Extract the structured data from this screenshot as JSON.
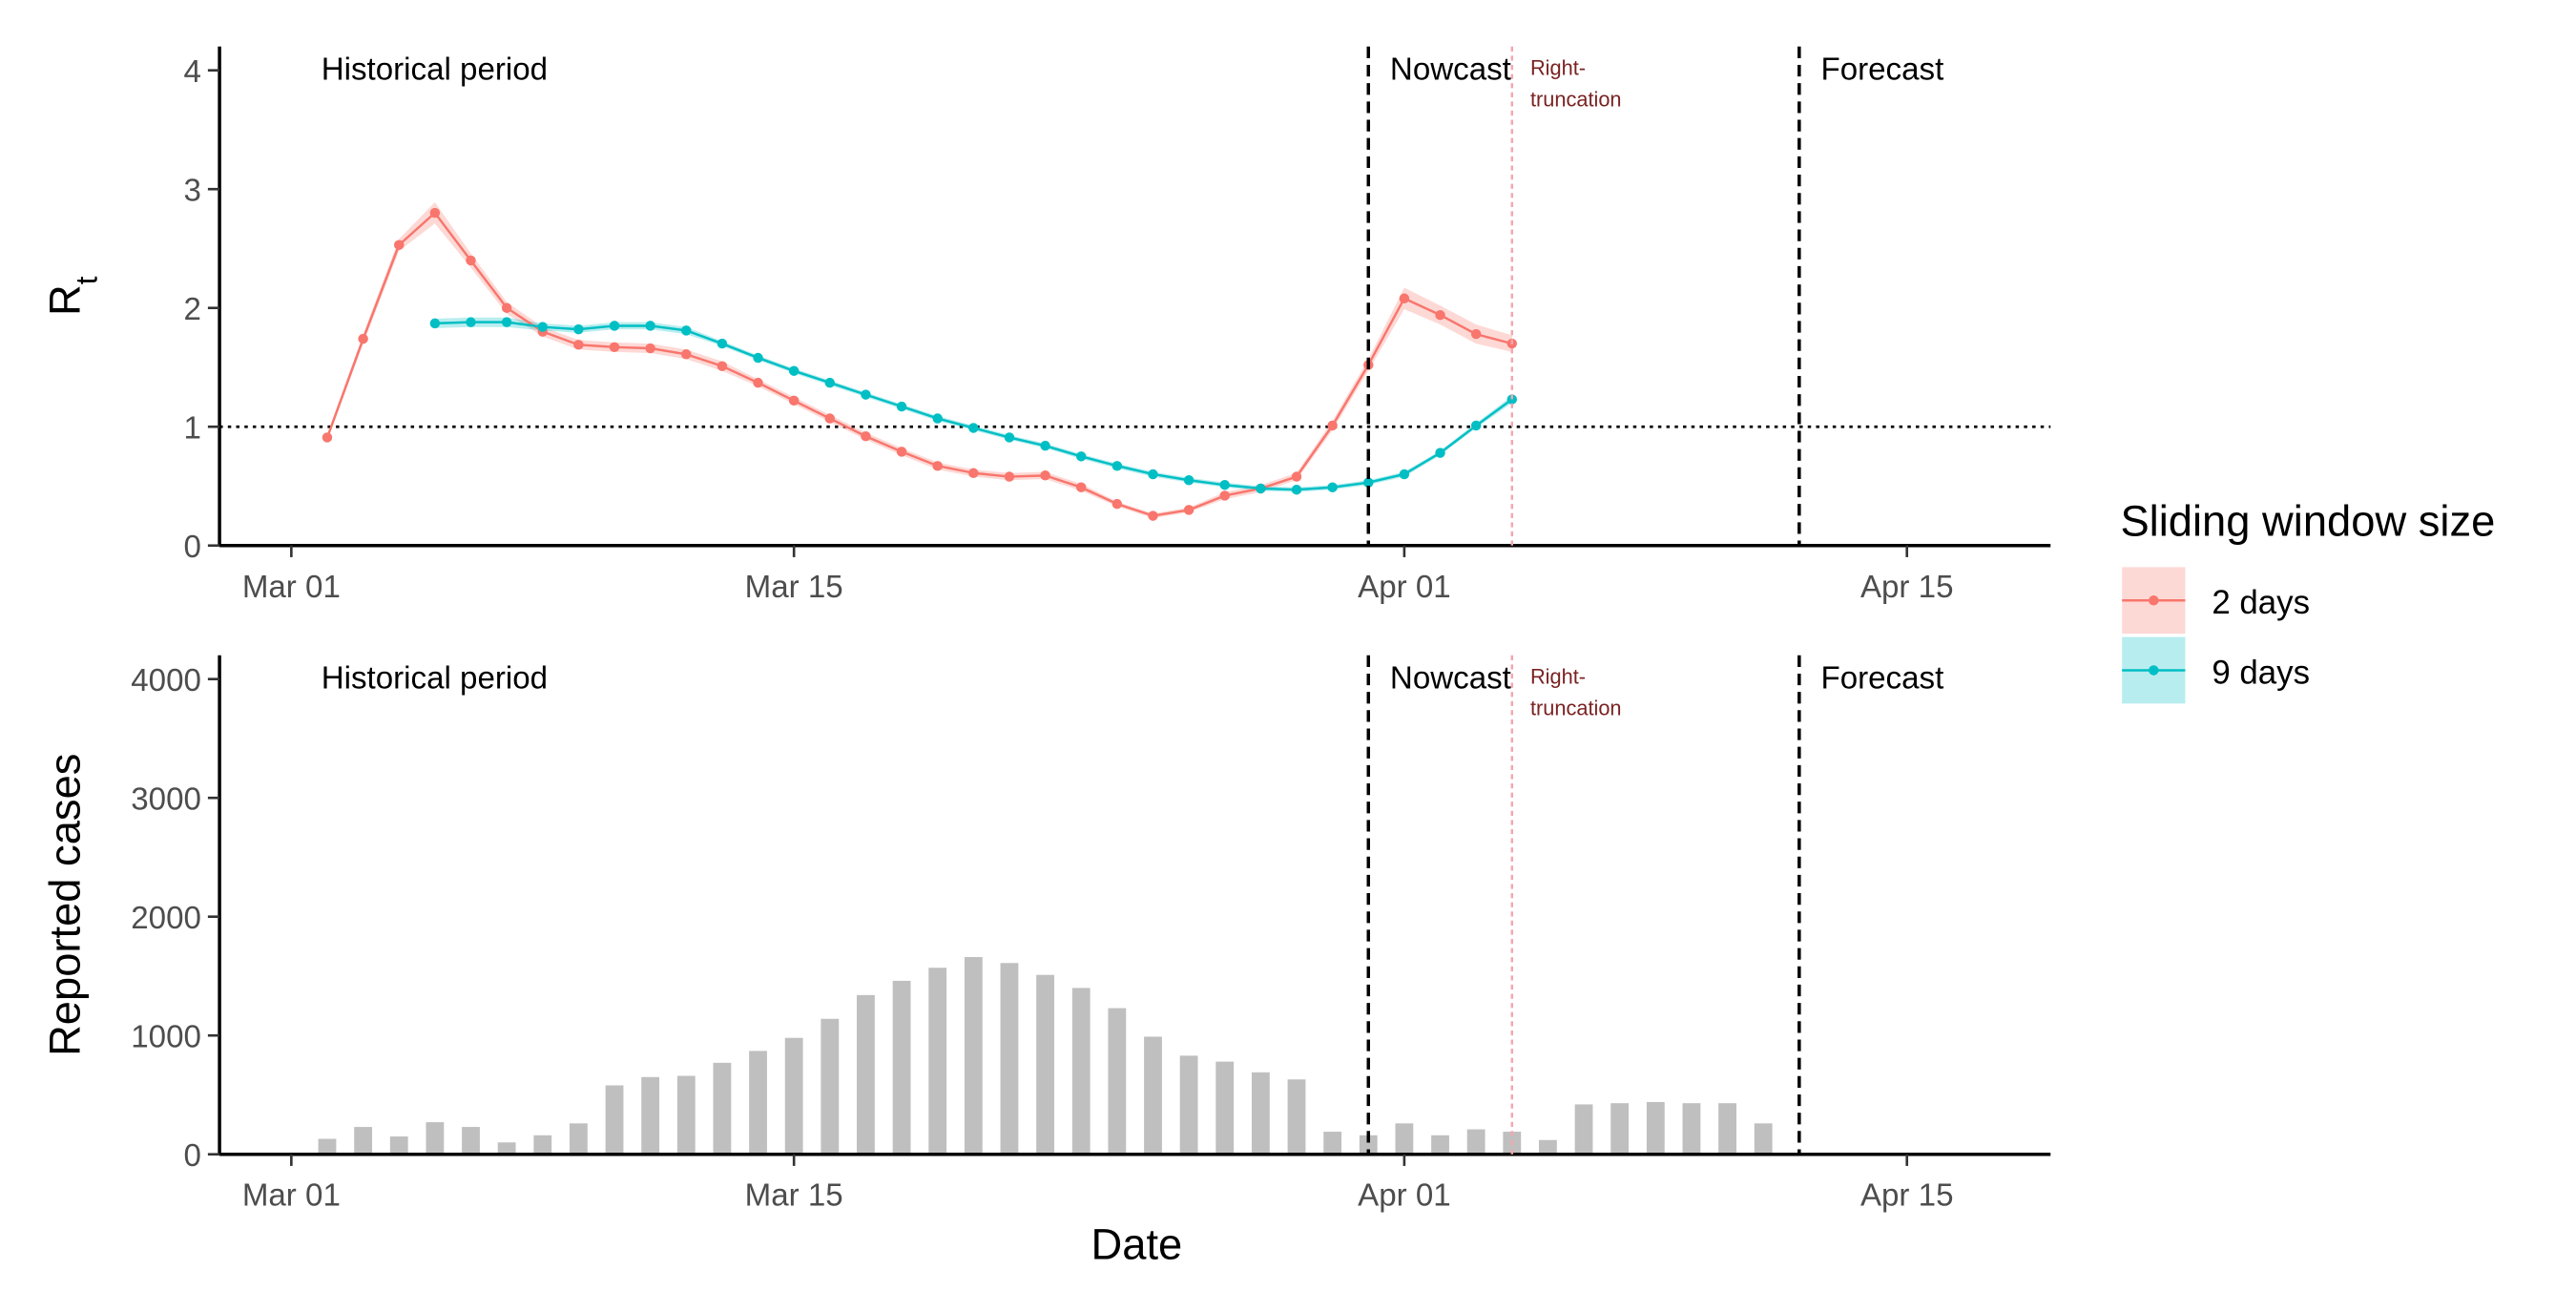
{
  "chart_data": [
    {
      "type": "line",
      "ylabel": "R",
      "ylabel_subscript": "t",
      "x_type": "date",
      "xlim": [
        "2020-02-28",
        "2020-04-19"
      ],
      "ylim": [
        0,
        4.2
      ],
      "x_ticks": [
        {
          "date": "2020-03-01",
          "label": "Mar 01"
        },
        {
          "date": "2020-03-15",
          "label": "Mar 15"
        },
        {
          "date": "2020-04-01",
          "label": "Apr 01"
        },
        {
          "date": "2020-04-15",
          "label": "Apr 15"
        }
      ],
      "y_ticks": [
        0,
        1,
        2,
        3,
        4
      ],
      "reference_line": {
        "y": 1,
        "style": "dotted"
      },
      "period_boundaries": [
        {
          "date": "2020-03-31",
          "style": "dashed",
          "color": "#000000"
        },
        {
          "date": "2020-04-04",
          "style": "dotted",
          "color": "#f4a6b0"
        },
        {
          "date": "2020-04-12",
          "style": "dashed",
          "color": "#000000"
        }
      ],
      "region_labels": [
        {
          "date": "2020-03-01",
          "text": "Historical period"
        },
        {
          "date": "2020-03-31",
          "text": "Nowcast"
        },
        {
          "date": "2020-04-04",
          "text": "Right-",
          "text2": "truncation"
        },
        {
          "date": "2020-04-12",
          "text": "Forecast"
        }
      ],
      "series": [
        {
          "name": "2 days",
          "color": "#F8766D",
          "band_color": "#F8766D",
          "points": [
            [
              "2020-03-02",
              0.91
            ],
            [
              "2020-03-03",
              1.74
            ],
            [
              "2020-03-04",
              2.53
            ],
            [
              "2020-03-05",
              2.8
            ],
            [
              "2020-03-06",
              2.4
            ],
            [
              "2020-03-07",
              2.0
            ],
            [
              "2020-03-08",
              1.8
            ],
            [
              "2020-03-09",
              1.69
            ],
            [
              "2020-03-10",
              1.67
            ],
            [
              "2020-03-11",
              1.66
            ],
            [
              "2020-03-12",
              1.61
            ],
            [
              "2020-03-13",
              1.51
            ],
            [
              "2020-03-14",
              1.37
            ],
            [
              "2020-03-15",
              1.22
            ],
            [
              "2020-03-16",
              1.07
            ],
            [
              "2020-03-17",
              0.92
            ],
            [
              "2020-03-18",
              0.79
            ],
            [
              "2020-03-19",
              0.67
            ],
            [
              "2020-03-20",
              0.61
            ],
            [
              "2020-03-21",
              0.58
            ],
            [
              "2020-03-22",
              0.59
            ],
            [
              "2020-03-23",
              0.49
            ],
            [
              "2020-03-24",
              0.35
            ],
            [
              "2020-03-25",
              0.25
            ],
            [
              "2020-03-26",
              0.3
            ],
            [
              "2020-03-27",
              0.42
            ],
            [
              "2020-03-28",
              0.48
            ],
            [
              "2020-03-29",
              0.58
            ],
            [
              "2020-03-30",
              1.01
            ],
            [
              "2020-03-31",
              1.52
            ],
            [
              "2020-04-01",
              2.08
            ],
            [
              "2020-04-02",
              1.94
            ],
            [
              "2020-04-03",
              1.78
            ],
            [
              "2020-04-04",
              1.7
            ]
          ],
          "band_halfwidth": [
            0.03,
            0.04,
            0.05,
            0.09,
            0.06,
            0.05,
            0.04,
            0.04,
            0.04,
            0.04,
            0.04,
            0.04,
            0.03,
            0.03,
            0.03,
            0.03,
            0.03,
            0.03,
            0.03,
            0.03,
            0.03,
            0.03,
            0.02,
            0.02,
            0.02,
            0.03,
            0.03,
            0.03,
            0.04,
            0.05,
            0.09,
            0.08,
            0.08,
            0.07
          ]
        },
        {
          "name": "9 days",
          "color": "#00BFC4",
          "band_color": "#00BFC4",
          "points": [
            [
              "2020-03-05",
              1.87
            ],
            [
              "2020-03-06",
              1.88
            ],
            [
              "2020-03-07",
              1.88
            ],
            [
              "2020-03-08",
              1.84
            ],
            [
              "2020-03-09",
              1.82
            ],
            [
              "2020-03-10",
              1.85
            ],
            [
              "2020-03-11",
              1.85
            ],
            [
              "2020-03-12",
              1.81
            ],
            [
              "2020-03-13",
              1.7
            ],
            [
              "2020-03-14",
              1.58
            ],
            [
              "2020-03-15",
              1.47
            ],
            [
              "2020-03-16",
              1.37
            ],
            [
              "2020-03-17",
              1.27
            ],
            [
              "2020-03-18",
              1.17
            ],
            [
              "2020-03-19",
              1.07
            ],
            [
              "2020-03-20",
              0.99
            ],
            [
              "2020-03-21",
              0.91
            ],
            [
              "2020-03-22",
              0.84
            ],
            [
              "2020-03-23",
              0.75
            ],
            [
              "2020-03-24",
              0.67
            ],
            [
              "2020-03-25",
              0.6
            ],
            [
              "2020-03-26",
              0.55
            ],
            [
              "2020-03-27",
              0.51
            ],
            [
              "2020-03-28",
              0.48
            ],
            [
              "2020-03-29",
              0.47
            ],
            [
              "2020-03-30",
              0.49
            ],
            [
              "2020-03-31",
              0.53
            ],
            [
              "2020-04-01",
              0.6
            ],
            [
              "2020-04-02",
              0.78
            ],
            [
              "2020-04-03",
              1.01
            ],
            [
              "2020-04-04",
              1.23
            ]
          ],
          "band_halfwidth": [
            0.04,
            0.04,
            0.04,
            0.03,
            0.03,
            0.03,
            0.03,
            0.03,
            0.02,
            0.02,
            0.02,
            0.02,
            0.02,
            0.02,
            0.02,
            0.02,
            0.02,
            0.02,
            0.02,
            0.02,
            0.02,
            0.02,
            0.02,
            0.02,
            0.02,
            0.02,
            0.02,
            0.02,
            0.02,
            0.02,
            0.03
          ]
        }
      ]
    },
    {
      "type": "bar",
      "ylabel": "Reported cases",
      "xlabel": "Date",
      "x_type": "date",
      "xlim": [
        "2020-02-28",
        "2020-04-19"
      ],
      "ylim": [
        0,
        4200
      ],
      "x_ticks": [
        {
          "date": "2020-03-01",
          "label": "Mar 01"
        },
        {
          "date": "2020-03-15",
          "label": "Mar 15"
        },
        {
          "date": "2020-04-01",
          "label": "Apr 01"
        },
        {
          "date": "2020-04-15",
          "label": "Apr 15"
        }
      ],
      "y_ticks": [
        0,
        1000,
        2000,
        3000,
        4000
      ],
      "bar_color": "#bfbfbf",
      "period_boundaries": [
        {
          "date": "2020-03-31",
          "style": "dashed",
          "color": "#000000"
        },
        {
          "date": "2020-04-04",
          "style": "dotted",
          "color": "#f4a6b0"
        },
        {
          "date": "2020-04-12",
          "style": "dashed",
          "color": "#000000"
        }
      ],
      "region_labels": [
        {
          "date": "2020-03-01",
          "text": "Historical period"
        },
        {
          "date": "2020-03-31",
          "text": "Nowcast"
        },
        {
          "date": "2020-04-04",
          "text": "Right-",
          "text2": "truncation"
        },
        {
          "date": "2020-04-12",
          "text": "Forecast"
        }
      ],
      "bars": [
        [
          "2020-03-02",
          130
        ],
        [
          "2020-03-03",
          230
        ],
        [
          "2020-03-04",
          150
        ],
        [
          "2020-03-05",
          270
        ],
        [
          "2020-03-06",
          230
        ],
        [
          "2020-03-07",
          100
        ],
        [
          "2020-03-08",
          160
        ],
        [
          "2020-03-09",
          260
        ],
        [
          "2020-03-10",
          580
        ],
        [
          "2020-03-11",
          650
        ],
        [
          "2020-03-12",
          660
        ],
        [
          "2020-03-13",
          770
        ],
        [
          "2020-03-14",
          870
        ],
        [
          "2020-03-15",
          980
        ],
        [
          "2020-03-16",
          1140
        ],
        [
          "2020-03-17",
          1340
        ],
        [
          "2020-03-18",
          1460
        ],
        [
          "2020-03-19",
          1570
        ],
        [
          "2020-03-20",
          1660
        ],
        [
          "2020-03-21",
          1610
        ],
        [
          "2020-03-22",
          1510
        ],
        [
          "2020-03-23",
          1400
        ],
        [
          "2020-03-24",
          1230
        ],
        [
          "2020-03-25",
          990
        ],
        [
          "2020-03-26",
          830
        ],
        [
          "2020-03-27",
          780
        ],
        [
          "2020-03-28",
          690
        ],
        [
          "2020-03-29",
          630
        ],
        [
          "2020-03-30",
          190
        ],
        [
          "2020-03-31",
          160
        ],
        [
          "2020-04-01",
          260
        ],
        [
          "2020-04-02",
          160
        ],
        [
          "2020-04-03",
          210
        ],
        [
          "2020-04-04",
          190
        ],
        [
          "2020-04-05",
          120
        ],
        [
          "2020-04-06",
          420
        ],
        [
          "2020-04-07",
          430
        ],
        [
          "2020-04-08",
          440
        ],
        [
          "2020-04-09",
          430
        ],
        [
          "2020-04-10",
          430
        ],
        [
          "2020-04-11",
          260
        ]
      ]
    }
  ],
  "legend": {
    "title": "Sliding window size",
    "items": [
      {
        "label": "2 days",
        "color": "#F8766D"
      },
      {
        "label": "9 days",
        "color": "#00BFC4"
      }
    ]
  }
}
